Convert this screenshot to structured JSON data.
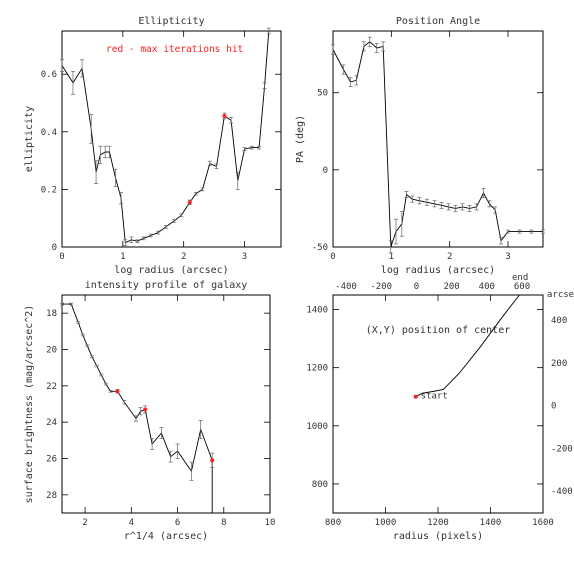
{
  "chart_data": [
    {
      "type": "line",
      "title": "Ellipticity",
      "xlabel": "log radius (arcsec)",
      "ylabel": "ellipticity",
      "xlim": [
        0,
        3.6
      ],
      "ylim": [
        0,
        0.75
      ],
      "xticks": [
        "0",
        "1",
        "2",
        "3"
      ],
      "yticks": [
        "0",
        "0.2",
        "0.4",
        "0.6"
      ],
      "annotations": [
        {
          "text": "red - max iterations hit",
          "color": "#ff2020"
        }
      ],
      "points": [
        {
          "x": 0.0,
          "y": 0.63,
          "err": 0.02
        },
        {
          "x": 0.18,
          "y": 0.57,
          "err": 0.04
        },
        {
          "x": 0.33,
          "y": 0.62,
          "err": 0.03
        },
        {
          "x": 0.48,
          "y": 0.41,
          "err": 0.05
        },
        {
          "x": 0.56,
          "y": 0.26,
          "err": 0.04
        },
        {
          "x": 0.63,
          "y": 0.32,
          "err": 0.03
        },
        {
          "x": 0.71,
          "y": 0.33,
          "err": 0.02
        },
        {
          "x": 0.78,
          "y": 0.33,
          "err": 0.02
        },
        {
          "x": 0.88,
          "y": 0.24,
          "err": 0.03
        },
        {
          "x": 0.97,
          "y": 0.17,
          "err": 0.02
        },
        {
          "x": 1.04,
          "y": 0.015,
          "err": 0.01
        },
        {
          "x": 1.14,
          "y": 0.025,
          "err": 0.01
        },
        {
          "x": 1.24,
          "y": 0.02,
          "err": 0.005
        },
        {
          "x": 1.34,
          "y": 0.03,
          "err": 0.005
        },
        {
          "x": 1.46,
          "y": 0.04,
          "err": 0.005
        },
        {
          "x": 1.58,
          "y": 0.05,
          "err": 0.005
        },
        {
          "x": 1.71,
          "y": 0.07,
          "err": 0.005
        },
        {
          "x": 1.84,
          "y": 0.09,
          "err": 0.005
        },
        {
          "x": 1.96,
          "y": 0.11,
          "err": 0.005
        },
        {
          "x": 2.1,
          "y": 0.155,
          "err": 0.008,
          "max_iter": true
        },
        {
          "x": 2.2,
          "y": 0.185,
          "err": 0.005
        },
        {
          "x": 2.31,
          "y": 0.2,
          "err": 0.005
        },
        {
          "x": 2.43,
          "y": 0.29,
          "err": 0.008
        },
        {
          "x": 2.54,
          "y": 0.28,
          "err": 0.008
        },
        {
          "x": 2.67,
          "y": 0.455,
          "err": 0.01,
          "max_iter": true
        },
        {
          "x": 2.78,
          "y": 0.44,
          "err": 0.01
        },
        {
          "x": 2.89,
          "y": 0.23,
          "err": 0.03
        },
        {
          "x": 3.0,
          "y": 0.34,
          "err": 0.005
        },
        {
          "x": 3.12,
          "y": 0.345,
          "err": 0.005
        },
        {
          "x": 3.24,
          "y": 0.345,
          "err": 0.005
        },
        {
          "x": 3.33,
          "y": 0.56,
          "err": 0.01
        },
        {
          "x": 3.4,
          "y": 0.75,
          "err": 0.01
        }
      ]
    },
    {
      "type": "line",
      "title": "Position Angle",
      "xlabel": "log radius (arcsec)",
      "ylabel": "PA (deg)",
      "xlim": [
        0,
        3.6
      ],
      "ylim": [
        -50,
        90
      ],
      "xticks": [
        "0",
        "1",
        "2",
        "3"
      ],
      "yticks": [
        "-50",
        "0",
        "50"
      ],
      "points": [
        {
          "x": 0.0,
          "y": 78,
          "err": 3
        },
        {
          "x": 0.18,
          "y": 65,
          "err": 3
        },
        {
          "x": 0.3,
          "y": 57,
          "err": 3
        },
        {
          "x": 0.4,
          "y": 58,
          "err": 3
        },
        {
          "x": 0.53,
          "y": 80,
          "err": 3
        },
        {
          "x": 0.63,
          "y": 83,
          "err": 3
        },
        {
          "x": 0.75,
          "y": 79,
          "err": 3
        },
        {
          "x": 0.86,
          "y": 80,
          "err": 3
        },
        {
          "x": 0.99,
          "y": -50,
          "err": 4
        },
        {
          "x": 1.08,
          "y": -40,
          "err": 8
        },
        {
          "x": 1.18,
          "y": -35,
          "err": 8
        },
        {
          "x": 1.26,
          "y": -16,
          "err": 2
        },
        {
          "x": 1.36,
          "y": -19,
          "err": 2
        },
        {
          "x": 1.48,
          "y": -20,
          "err": 2
        },
        {
          "x": 1.61,
          "y": -21,
          "err": 2
        },
        {
          "x": 1.74,
          "y": -22,
          "err": 2
        },
        {
          "x": 1.86,
          "y": -23,
          "err": 2
        },
        {
          "x": 1.98,
          "y": -24,
          "err": 2
        },
        {
          "x": 2.1,
          "y": -25,
          "err": 2
        },
        {
          "x": 2.22,
          "y": -24,
          "err": 2
        },
        {
          "x": 2.34,
          "y": -25,
          "err": 2
        },
        {
          "x": 2.46,
          "y": -24,
          "err": 2
        },
        {
          "x": 2.58,
          "y": -15,
          "err": 3
        },
        {
          "x": 2.68,
          "y": -22,
          "err": 2
        },
        {
          "x": 2.78,
          "y": -26,
          "err": 2
        },
        {
          "x": 2.88,
          "y": -46,
          "err": 2
        },
        {
          "x": 3.0,
          "y": -40,
          "err": 1
        },
        {
          "x": 3.2,
          "y": -40,
          "err": 1
        },
        {
          "x": 3.4,
          "y": -40,
          "err": 1
        },
        {
          "x": 3.6,
          "y": -40,
          "err": 1
        }
      ]
    },
    {
      "type": "line",
      "title": "intensity profile of galaxy",
      "xlabel": "r^1/4 (arcsec)",
      "ylabel": "surface brightness (mag/arcsec^2)",
      "xlim": [
        1,
        10
      ],
      "ylim": [
        29,
        17
      ],
      "xticks": [
        "2",
        "4",
        "6",
        "8",
        "10"
      ],
      "yticks": [
        "18",
        "20",
        "22",
        "24",
        "26",
        "28"
      ],
      "points": [
        {
          "x": 1.0,
          "y": 17.5,
          "err": 0.05
        },
        {
          "x": 1.4,
          "y": 17.5,
          "err": 0.05
        },
        {
          "x": 1.7,
          "y": 18.5,
          "err": 0.05
        },
        {
          "x": 1.9,
          "y": 19.2,
          "err": 0.05
        },
        {
          "x": 2.1,
          "y": 19.8,
          "err": 0.05
        },
        {
          "x": 2.3,
          "y": 20.4,
          "err": 0.05
        },
        {
          "x": 2.5,
          "y": 20.9,
          "err": 0.05
        },
        {
          "x": 2.7,
          "y": 21.4,
          "err": 0.05
        },
        {
          "x": 2.9,
          "y": 21.9,
          "err": 0.05
        },
        {
          "x": 3.1,
          "y": 22.3,
          "err": 0.05
        },
        {
          "x": 3.4,
          "y": 22.3,
          "err": 0.1,
          "max_iter": true
        },
        {
          "x": 3.7,
          "y": 22.9,
          "err": 0.1
        },
        {
          "x": 4.2,
          "y": 23.8,
          "err": 0.15
        },
        {
          "x": 4.4,
          "y": 23.4,
          "err": 0.2
        },
        {
          "x": 4.6,
          "y": 23.3,
          "err": 0.2,
          "max_iter": true
        },
        {
          "x": 4.9,
          "y": 25.2,
          "err": 0.3
        },
        {
          "x": 5.3,
          "y": 24.6,
          "err": 0.3
        },
        {
          "x": 5.7,
          "y": 25.9,
          "err": 0.3
        },
        {
          "x": 6.0,
          "y": 25.6,
          "err": 0.4
        },
        {
          "x": 6.6,
          "y": 26.7,
          "err": 0.5
        },
        {
          "x": 7.0,
          "y": 24.4,
          "err": 0.5
        },
        {
          "x": 7.5,
          "y": 26.1,
          "err": 0.4,
          "max_iter": true
        },
        {
          "x": 7.5,
          "y": 29.0,
          "err": 0.0
        }
      ]
    },
    {
      "type": "line",
      "title": "(X,Y) position of center",
      "xlabel": "radius (pixels)",
      "xlim": [
        800,
        1600
      ],
      "ylim": [
        700,
        1450
      ],
      "xticks": [
        "800",
        "1000",
        "1200",
        "1400",
        "1600"
      ],
      "yticks": [
        "800",
        "1000",
        "1200",
        "1400"
      ],
      "top_axis": {
        "label": "arcsec",
        "ticks": [
          "-400",
          "-200",
          "0",
          "200",
          "400",
          "600"
        ]
      },
      "right_axis": {
        "label": "arcsec",
        "ticks": [
          "-400",
          "-200",
          "0",
          "200",
          "400"
        ]
      },
      "annotations": [
        {
          "text": "start"
        },
        {
          "text": "end"
        }
      ],
      "points": [
        {
          "x": 1115,
          "y": 1100,
          "max_iter": true
        },
        {
          "x": 1140,
          "y": 1112
        },
        {
          "x": 1180,
          "y": 1118
        },
        {
          "x": 1220,
          "y": 1125
        },
        {
          "x": 1280,
          "y": 1180
        },
        {
          "x": 1360,
          "y": 1270
        },
        {
          "x": 1450,
          "y": 1380
        },
        {
          "x": 1510,
          "y": 1450
        }
      ]
    }
  ]
}
